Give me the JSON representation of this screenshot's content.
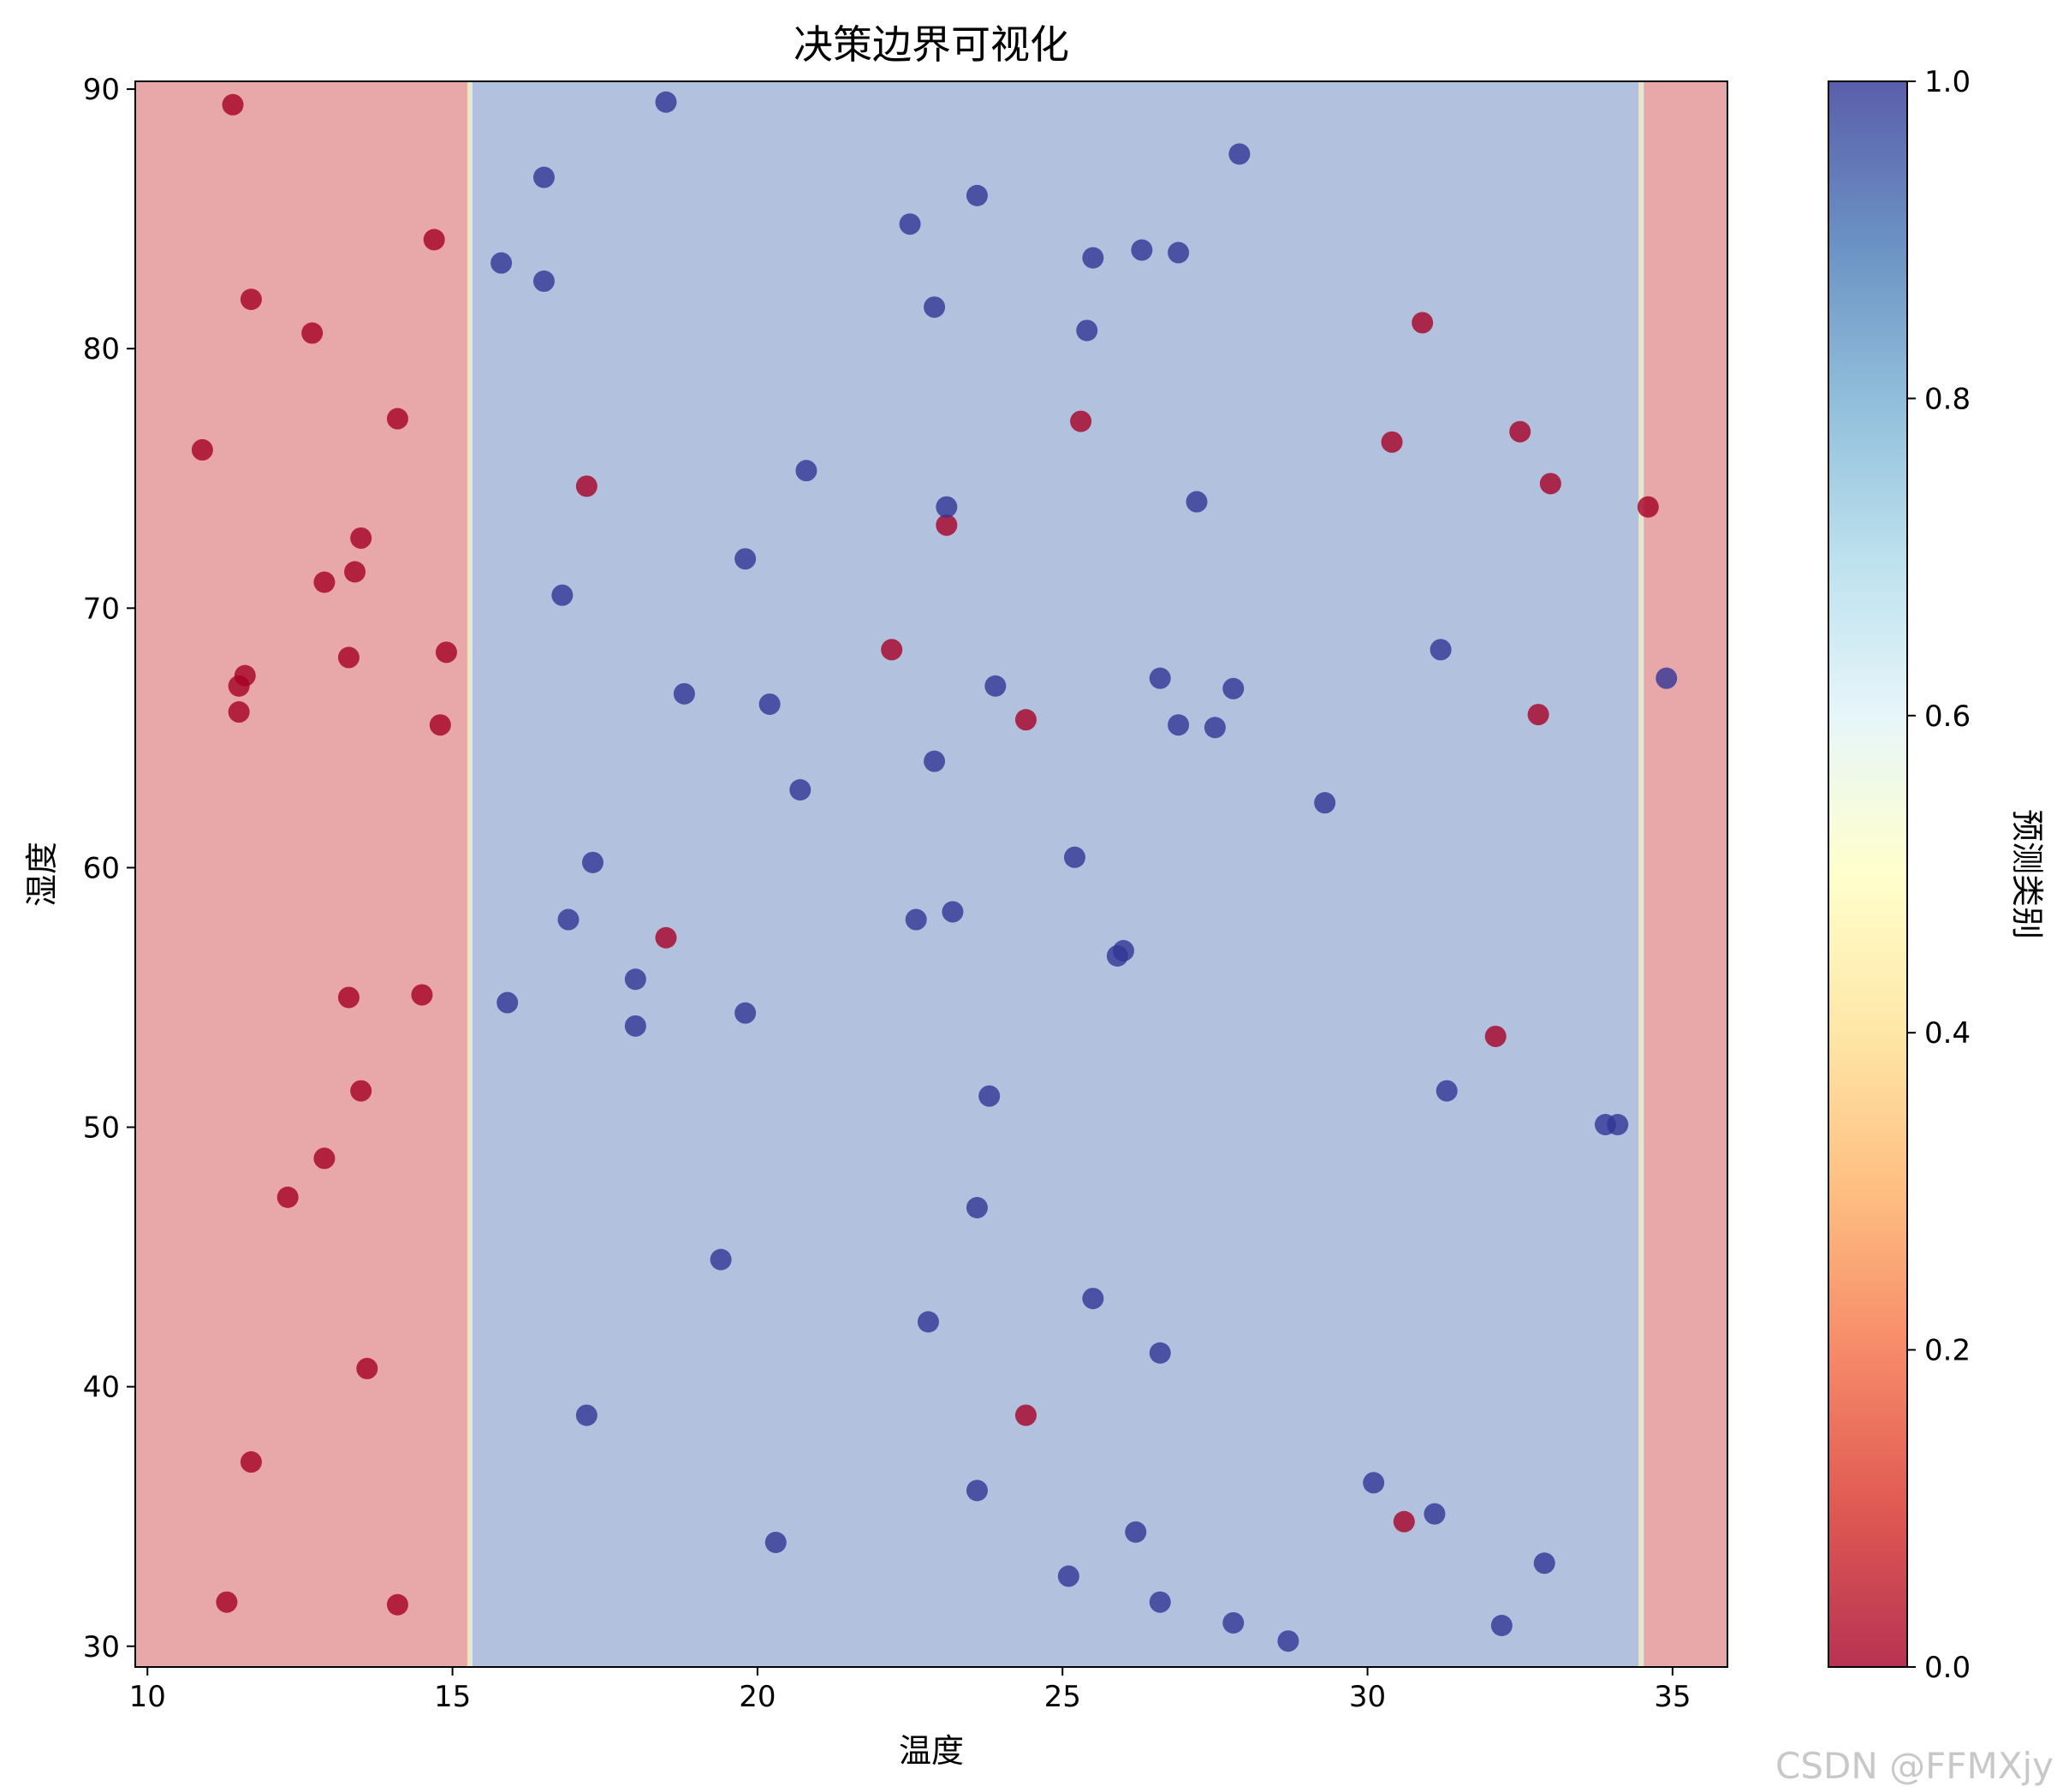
{
  "chart_data": {
    "type": "scatter",
    "title": "决策边界可视化",
    "xlabel": "温度",
    "ylabel": "湿度",
    "xlim": [
      9.8,
      35.9
    ],
    "ylim": [
      29.2,
      90.3
    ],
    "x_ticks": [
      10,
      15,
      20,
      25,
      30,
      35
    ],
    "y_ticks": [
      30,
      40,
      50,
      60,
      70,
      80,
      90
    ],
    "grid": false,
    "regions": [
      {
        "x_from": 9.8,
        "x_to": 15.3,
        "class": 0
      },
      {
        "x_from": 15.3,
        "x_to": 34.5,
        "class": 1
      },
      {
        "x_from": 34.5,
        "x_to": 35.9,
        "class": 0
      }
    ],
    "colorbar": {
      "label": "预测类别",
      "range": [
        0.0,
        1.0
      ],
      "ticks": [
        "0.0",
        "0.2",
        "0.4",
        "0.6",
        "0.8",
        "1.0"
      ],
      "colormap": [
        "#a50026",
        "#d73027",
        "#f46d43",
        "#fdae61",
        "#fee090",
        "#ffffbf",
        "#e0f3f8",
        "#abd9e9",
        "#74add1",
        "#4575b4",
        "#313695"
      ]
    },
    "colors": {
      "class_0": "#a50026",
      "class_1": "#313695",
      "region_0": "#e8a7a9",
      "region_1": "#b2c1de"
    },
    "series": [
      {
        "class": 0,
        "points": [
          [
            11.4,
            89.4
          ],
          [
            14.7,
            84.2
          ],
          [
            11.7,
            81.9
          ],
          [
            12.7,
            80.6
          ],
          [
            14.1,
            77.3
          ],
          [
            10.9,
            76.1
          ],
          [
            13.5,
            72.7
          ],
          [
            13.4,
            71.4
          ],
          [
            12.9,
            71.0
          ],
          [
            13.3,
            68.1
          ],
          [
            14.9,
            68.3
          ],
          [
            11.6,
            67.4
          ],
          [
            11.5,
            67.0
          ],
          [
            11.5,
            66.0
          ],
          [
            14.8,
            65.5
          ],
          [
            13.3,
            55.0
          ],
          [
            14.5,
            55.1
          ],
          [
            13.5,
            51.4
          ],
          [
            12.9,
            48.8
          ],
          [
            12.3,
            47.3
          ],
          [
            13.6,
            40.7
          ],
          [
            11.7,
            37.1
          ],
          [
            11.3,
            31.7
          ],
          [
            14.1,
            31.6
          ],
          [
            17.2,
            74.7
          ],
          [
            18.5,
            57.3
          ],
          [
            22.2,
            68.4
          ],
          [
            23.1,
            73.2
          ],
          [
            24.4,
            65.7
          ],
          [
            25.3,
            77.2
          ],
          [
            24.4,
            38.9
          ],
          [
            30.4,
            76.4
          ],
          [
            30.9,
            81.0
          ],
          [
            32.5,
            76.8
          ],
          [
            33.0,
            74.8
          ],
          [
            32.8,
            65.9
          ],
          [
            32.1,
            53.5
          ],
          [
            30.6,
            34.8
          ],
          [
            34.6,
            73.9
          ]
        ]
      },
      {
        "class": 1,
        "points": [
          [
            18.5,
            89.5
          ],
          [
            27.9,
            87.5
          ],
          [
            16.5,
            86.6
          ],
          [
            23.6,
            85.9
          ],
          [
            22.5,
            84.8
          ],
          [
            26.3,
            83.8
          ],
          [
            26.9,
            83.7
          ],
          [
            25.5,
            83.5
          ],
          [
            15.8,
            83.3
          ],
          [
            16.5,
            82.6
          ],
          [
            22.9,
            81.6
          ],
          [
            25.4,
            80.7
          ],
          [
            20.8,
            75.3
          ],
          [
            27.2,
            74.1
          ],
          [
            23.1,
            73.9
          ],
          [
            19.8,
            71.9
          ],
          [
            16.8,
            70.5
          ],
          [
            31.2,
            68.4
          ],
          [
            23.9,
            67.0
          ],
          [
            18.8,
            66.7
          ],
          [
            26.6,
            67.3
          ],
          [
            27.8,
            66.9
          ],
          [
            20.2,
            66.3
          ],
          [
            26.9,
            65.5
          ],
          [
            27.5,
            65.4
          ],
          [
            22.9,
            64.1
          ],
          [
            20.7,
            63.0
          ],
          [
            29.3,
            62.5
          ],
          [
            17.3,
            60.2
          ],
          [
            25.2,
            60.4
          ],
          [
            23.2,
            58.3
          ],
          [
            22.6,
            58.0
          ],
          [
            16.9,
            58.0
          ],
          [
            25.9,
            56.6
          ],
          [
            26.0,
            56.8
          ],
          [
            18.0,
            55.7
          ],
          [
            15.9,
            54.8
          ],
          [
            19.8,
            54.4
          ],
          [
            18.0,
            53.9
          ],
          [
            31.3,
            51.4
          ],
          [
            23.8,
            51.2
          ],
          [
            33.9,
            50.1
          ],
          [
            34.1,
            50.1
          ],
          [
            23.6,
            46.9
          ],
          [
            19.4,
            44.9
          ],
          [
            22.8,
            42.5
          ],
          [
            25.5,
            43.4
          ],
          [
            26.6,
            41.3
          ],
          [
            17.2,
            38.9
          ],
          [
            30.1,
            36.3
          ],
          [
            23.6,
            36.0
          ],
          [
            31.1,
            35.1
          ],
          [
            26.2,
            34.4
          ],
          [
            20.3,
            34.0
          ],
          [
            32.9,
            33.2
          ],
          [
            25.1,
            32.7
          ],
          [
            26.6,
            31.7
          ],
          [
            27.8,
            30.9
          ],
          [
            32.2,
            30.8
          ],
          [
            28.7,
            30.2
          ],
          [
            34.9,
            67.3
          ]
        ]
      }
    ]
  },
  "watermark": "CSDN @FFMXjy"
}
